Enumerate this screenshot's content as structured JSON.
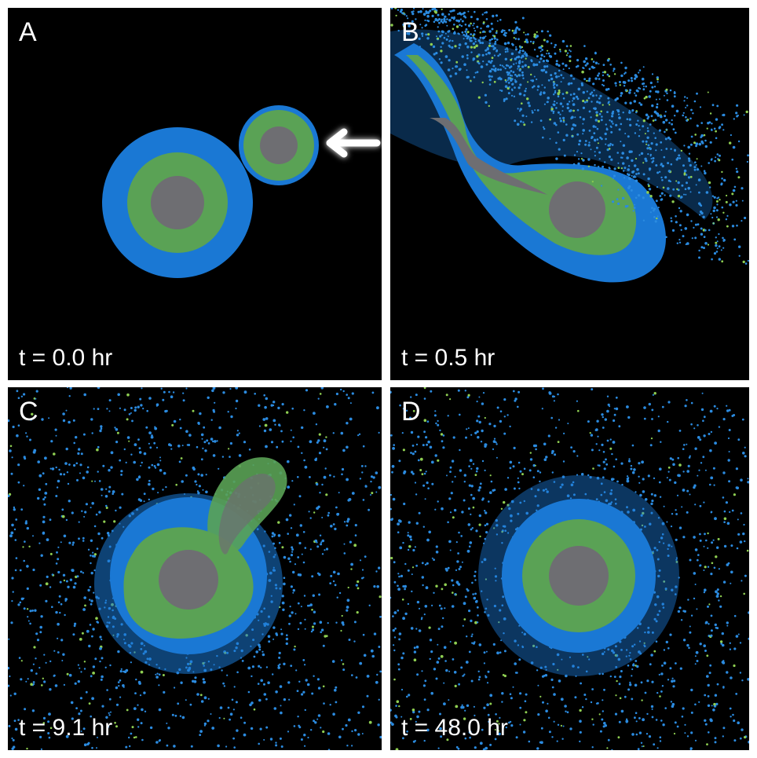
{
  "colors": {
    "background": "#000000",
    "outer_layer": "#1a78d4",
    "middle_layer": "#5aa255",
    "core": "#6e6e72",
    "debris_blue": "#2b8be0",
    "debris_green": "#8fcf52"
  },
  "panels": [
    {
      "letter": "A",
      "time": "t = 0.0 hr"
    },
    {
      "letter": "B",
      "time": "t = 0.5 hr"
    },
    {
      "letter": "C",
      "time": "t = 9.1 hr"
    },
    {
      "letter": "D",
      "time": "t = 48.0 hr"
    }
  ],
  "icons": {
    "impact_direction": "left-arrow-icon"
  }
}
